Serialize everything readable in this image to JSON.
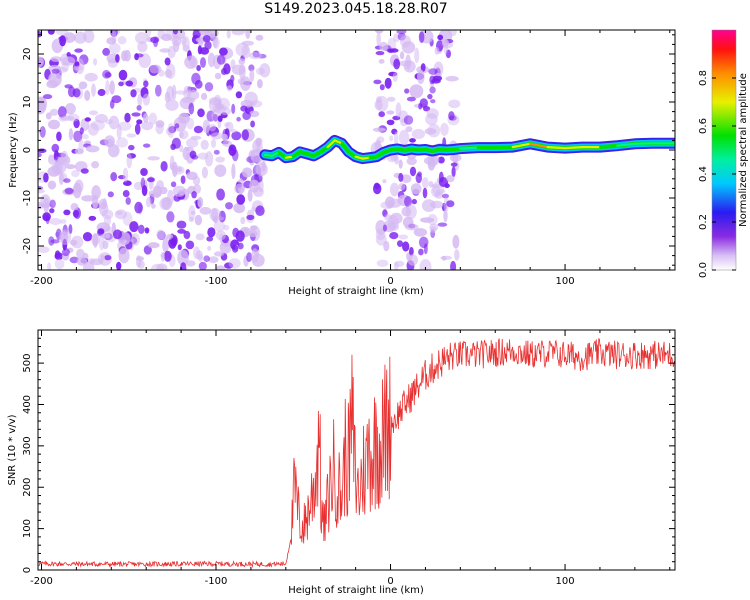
{
  "title": "S149.2023.045.18.28.R07",
  "colors": {
    "snr_line": "#e83030",
    "noise_purple": "#7a1ef0",
    "noise_light": "#d4b8f2",
    "ridge_outline": "#3a22e8"
  },
  "chart_data": [
    {
      "type": "heatmap",
      "title": "S149.2023.045.18.28.R07",
      "xlabel": "Height of straight line (km)",
      "ylabel": "Frequency (Hz)",
      "xlim": [
        -202,
        163
      ],
      "ylim": [
        -25,
        25
      ],
      "x_ticks": [
        -200,
        -100,
        0,
        100
      ],
      "y_ticks": [
        -20,
        -10,
        0,
        10,
        20
      ],
      "colorbar": {
        "label": "Normalized spectral amplitude",
        "range": [
          0,
          1
        ],
        "ticks": [
          0.0,
          0.2,
          0.4,
          0.6,
          0.8
        ],
        "colormap": "white-purple-blue-cyan-green-yellow-red-magenta"
      },
      "noise_regions_km": [
        [
          -202,
          -72
        ],
        [
          -8,
          38
        ]
      ],
      "ridge": {
        "x": [
          -72,
          -68,
          -64,
          -60,
          -56,
          -52,
          -48,
          -44,
          -40,
          -36,
          -32,
          -28,
          -24,
          -20,
          -16,
          -12,
          -8,
          -4,
          0,
          4,
          8,
          12,
          16,
          20,
          24,
          28,
          32,
          36,
          40,
          50,
          60,
          70,
          80,
          90,
          100,
          110,
          120,
          130,
          140,
          150,
          163
        ],
        "y": [
          -1.0,
          -1.2,
          -0.5,
          -1.6,
          -1.4,
          -0.4,
          -0.8,
          -1.2,
          -0.4,
          0.6,
          2.0,
          1.4,
          -0.4,
          -1.4,
          -1.8,
          -1.6,
          -1.4,
          -0.5,
          0.0,
          0.2,
          -0.1,
          0.2,
          0.0,
          0.1,
          -0.2,
          0.1,
          0.0,
          0.1,
          0.3,
          0.5,
          0.5,
          0.6,
          1.3,
          0.6,
          0.4,
          0.6,
          0.6,
          0.9,
          1.3,
          1.4,
          1.4
        ],
        "amplitude": [
          0.45,
          0.6,
          0.5,
          0.8,
          0.75,
          0.55,
          0.65,
          0.7,
          0.6,
          0.75,
          0.85,
          0.7,
          0.6,
          0.75,
          0.8,
          0.8,
          0.5,
          0.3,
          0.35,
          0.3,
          0.3,
          0.35,
          0.3,
          0.35,
          0.3,
          0.3,
          0.3,
          0.35,
          0.5,
          0.55,
          0.6,
          0.75,
          0.85,
          0.8,
          0.7,
          0.75,
          0.8,
          0.55,
          0.5,
          0.5,
          0.5
        ]
      }
    },
    {
      "type": "line",
      "xlabel": "Height of straight line (km)",
      "ylabel": "SNR (10 * v/v)",
      "xlim": [
        -202,
        163
      ],
      "ylim": [
        0,
        580
      ],
      "x_ticks": [
        -200,
        -100,
        0,
        100
      ],
      "y_ticks": [
        0,
        100,
        200,
        300,
        400,
        500
      ],
      "series": [
        {
          "x": [
            -200,
            -150,
            -100,
            -70,
            -60,
            -57,
            -55,
            -53,
            -52,
            -50,
            -48,
            -46,
            -44,
            -42,
            -41,
            -40,
            -39,
            -38,
            -36,
            -34,
            -32,
            -30,
            -28,
            -26,
            -24,
            -22,
            -20,
            -18,
            -16,
            -14,
            -12,
            -10,
            -8,
            -6,
            -4,
            -2,
            0,
            5,
            10,
            15,
            20,
            25,
            30,
            35,
            40,
            50,
            60,
            70,
            80,
            90,
            100,
            110,
            120,
            130,
            140,
            150,
            163
          ],
          "y": [
            15,
            14,
            15,
            14,
            15,
            80,
            200,
            140,
            120,
            100,
            130,
            160,
            200,
            260,
            400,
            180,
            120,
            100,
            160,
            220,
            250,
            200,
            180,
            280,
            260,
            360,
            220,
            180,
            240,
            250,
            300,
            270,
            330,
            300,
            320,
            350,
            350,
            380,
            410,
            440,
            470,
            490,
            505,
            515,
            520,
            520,
            525,
            530,
            520,
            525,
            520,
            515,
            525,
            520,
            520,
            520,
            520
          ]
        }
      ]
    }
  ]
}
